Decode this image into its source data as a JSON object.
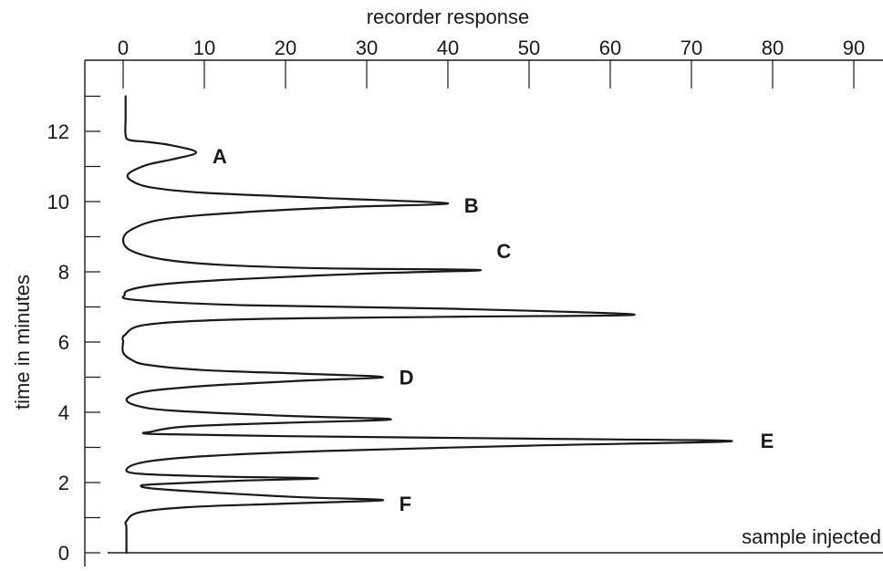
{
  "chart_data": {
    "type": "line",
    "xlabel": "recorder response",
    "ylabel": "time in minutes",
    "x_axis_position": "top",
    "xlim": [
      -5,
      95
    ],
    "ylim": [
      0,
      13
    ],
    "x_ticks": [
      0,
      10,
      20,
      30,
      40,
      50,
      60,
      70,
      80,
      90
    ],
    "y_ticks": [
      0,
      2,
      4,
      6,
      8,
      10,
      12
    ],
    "y_minor_ticks": [
      1,
      3,
      5,
      7,
      9,
      11,
      13
    ],
    "grid": false,
    "annotation": "sample injected",
    "series": [
      {
        "points": [
          [
            0.3,
            13.0
          ],
          [
            0.3,
            12.4
          ],
          [
            0.3,
            11.9
          ],
          [
            0.8,
            11.75
          ],
          [
            3.0,
            11.7
          ],
          [
            6.0,
            11.6
          ],
          [
            9.0,
            11.4
          ],
          [
            6.0,
            11.2
          ],
          [
            3.0,
            11.05
          ],
          [
            0.7,
            10.8
          ],
          [
            1.0,
            10.6
          ],
          [
            3.5,
            10.4
          ],
          [
            10.0,
            10.25
          ],
          [
            25.0,
            10.1
          ],
          [
            40.0,
            9.95
          ],
          [
            28.0,
            9.85
          ],
          [
            15.0,
            9.7
          ],
          [
            5.0,
            9.5
          ],
          [
            1.0,
            9.2
          ],
          [
            0.0,
            8.9
          ],
          [
            1.0,
            8.6
          ],
          [
            5.0,
            8.35
          ],
          [
            12.0,
            8.2
          ],
          [
            25.0,
            8.1
          ],
          [
            44.0,
            8.05
          ],
          [
            30.0,
            7.95
          ],
          [
            15.0,
            7.8
          ],
          [
            5.0,
            7.65
          ],
          [
            1.0,
            7.5
          ],
          [
            0.2,
            7.35
          ],
          [
            1.5,
            7.2
          ],
          [
            15.0,
            7.05
          ],
          [
            40.0,
            6.95
          ],
          [
            63.0,
            6.78
          ],
          [
            40.0,
            6.72
          ],
          [
            15.0,
            6.65
          ],
          [
            3.0,
            6.5
          ],
          [
            0.2,
            6.2
          ],
          [
            0.0,
            6.0
          ],
          [
            0.0,
            5.7
          ],
          [
            1.0,
            5.5
          ],
          [
            3.0,
            5.35
          ],
          [
            10.0,
            5.2
          ],
          [
            22.0,
            5.1
          ],
          [
            32.0,
            5.0
          ],
          [
            22.0,
            4.9
          ],
          [
            10.0,
            4.75
          ],
          [
            3.0,
            4.6
          ],
          [
            0.5,
            4.4
          ],
          [
            1.5,
            4.2
          ],
          [
            6.0,
            4.05
          ],
          [
            20.0,
            3.9
          ],
          [
            33.0,
            3.8
          ],
          [
            20.0,
            3.7
          ],
          [
            8.0,
            3.6
          ],
          [
            3.5,
            3.45
          ],
          [
            4.0,
            3.38
          ],
          [
            20.0,
            3.32
          ],
          [
            50.0,
            3.25
          ],
          [
            75.0,
            3.18
          ],
          [
            50.0,
            3.05
          ],
          [
            25.0,
            2.9
          ],
          [
            10.0,
            2.75
          ],
          [
            3.0,
            2.6
          ],
          [
            0.5,
            2.4
          ],
          [
            2.0,
            2.25
          ],
          [
            12.0,
            2.17
          ],
          [
            24.0,
            2.12
          ],
          [
            14.0,
            2.05
          ],
          [
            4.0,
            1.95
          ],
          [
            2.2,
            1.9
          ],
          [
            4.0,
            1.82
          ],
          [
            12.0,
            1.7
          ],
          [
            22.0,
            1.58
          ],
          [
            32.0,
            1.5
          ],
          [
            20.0,
            1.4
          ],
          [
            8.0,
            1.3
          ],
          [
            2.0,
            1.15
          ],
          [
            0.4,
            0.9
          ],
          [
            0.4,
            0.7
          ],
          [
            0.4,
            0.0
          ]
        ]
      }
    ],
    "peak_labels": [
      {
        "text": "A",
        "x": 11.0,
        "y": 11.3
      },
      {
        "text": "B",
        "x": 42.0,
        "y": 9.9
      },
      {
        "text": "C",
        "x": 46.0,
        "y": 8.6
      },
      {
        "text": "D",
        "x": 34.0,
        "y": 5.0
      },
      {
        "text": "E",
        "x": 78.5,
        "y": 3.2
      },
      {
        "text": "F",
        "x": 34.0,
        "y": 1.4
      }
    ]
  }
}
